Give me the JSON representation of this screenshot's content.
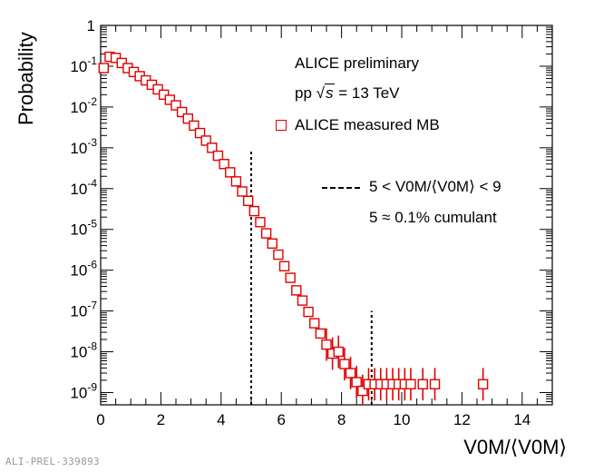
{
  "chart_data": {
    "type": "scatter",
    "title": "",
    "xlabel": "V0M/⟨V0M⟩",
    "ylabel": "Probability",
    "xlim": [
      0,
      15
    ],
    "ylim": [
      5e-10,
      1
    ],
    "yscale": "log",
    "x_ticks": [
      "0",
      "2",
      "4",
      "6",
      "8",
      "10",
      "12",
      "14"
    ],
    "y_ticks": [
      {
        "base": "1",
        "exp": ""
      },
      {
        "base": "10",
        "exp": "-1"
      },
      {
        "base": "10",
        "exp": "-2"
      },
      {
        "base": "10",
        "exp": "-3"
      },
      {
        "base": "10",
        "exp": "-4"
      },
      {
        "base": "10",
        "exp": "-5"
      },
      {
        "base": "10",
        "exp": "-6"
      },
      {
        "base": "10",
        "exp": "-7"
      },
      {
        "base": "10",
        "exp": "-8"
      },
      {
        "base": "10",
        "exp": "-9"
      }
    ],
    "series": [
      {
        "name": "ALICE measured MB",
        "color": "#e00000",
        "marker": "open-square",
        "x": [
          0.1,
          0.3,
          0.5,
          0.7,
          0.9,
          1.1,
          1.3,
          1.5,
          1.7,
          1.9,
          2.1,
          2.3,
          2.5,
          2.7,
          2.9,
          3.1,
          3.3,
          3.5,
          3.7,
          3.9,
          4.1,
          4.3,
          4.5,
          4.7,
          4.9,
          5.1,
          5.3,
          5.5,
          5.7,
          5.9,
          6.1,
          6.3,
          6.5,
          6.7,
          6.9,
          7.1,
          7.3,
          7.5,
          7.7,
          7.9,
          8.1,
          8.3,
          8.5,
          8.7,
          8.9,
          9.1,
          9.3,
          9.5,
          9.7,
          9.9,
          10.1,
          10.3,
          10.7,
          11.1,
          12.7
        ],
        "y": [
          0.09,
          0.17,
          0.16,
          0.12,
          0.09,
          0.072,
          0.057,
          0.045,
          0.035,
          0.027,
          0.02,
          0.015,
          0.011,
          0.0075,
          0.0052,
          0.0035,
          0.0023,
          0.0015,
          0.001,
          0.00064,
          0.0004,
          0.00025,
          0.00015,
          8.5e-05,
          5e-05,
          2.8e-05,
          1.5e-05,
          8e-06,
          4.5e-06,
          2.4e-06,
          1.25e-06,
          6.5e-07,
          3.2e-07,
          1.8e-07,
          9.5e-08,
          5e-08,
          2.8e-08,
          1.5e-08,
          9e-09,
          1e-08,
          5e-09,
          3e-09,
          1.8e-09,
          1.1e-09,
          1.6e-09,
          1.6e-09,
          1.6e-09,
          1.6e-09,
          1.6e-09,
          1.6e-09,
          1.6e-09,
          1.6e-09,
          1.6e-09,
          1.6e-09,
          1.6e-09
        ],
        "y_err_decades": [
          0,
          0,
          0,
          0,
          0,
          0,
          0,
          0,
          0,
          0,
          0,
          0,
          0,
          0,
          0,
          0,
          0,
          0,
          0,
          0,
          0,
          0,
          0,
          0,
          0,
          0,
          0,
          0,
          0,
          0,
          0,
          0,
          0,
          0,
          0,
          0,
          0,
          0,
          0,
          0,
          0,
          0,
          0,
          0,
          0,
          0,
          0,
          0,
          0,
          0,
          0,
          0,
          0,
          0,
          0
        ]
      }
    ],
    "cut_lines": [
      {
        "x": 5,
        "y_top": 0.0008
      },
      {
        "x": 9,
        "y_top": 1e-07
      }
    ],
    "annotations": {
      "title": "ALICE preliminary",
      "energy_prefix": "pp",
      "energy_sqrt": "s",
      "energy_suffix": "= 13 TeV",
      "legend_marker_label": "ALICE measured MB",
      "legend_cut_label": "5 < V0M/⟨V0M⟩ < 9",
      "cumulant_label": "5 ≈ 0.1% cumulant"
    }
  },
  "footer": {
    "id": "ALI-PREL-339893"
  }
}
